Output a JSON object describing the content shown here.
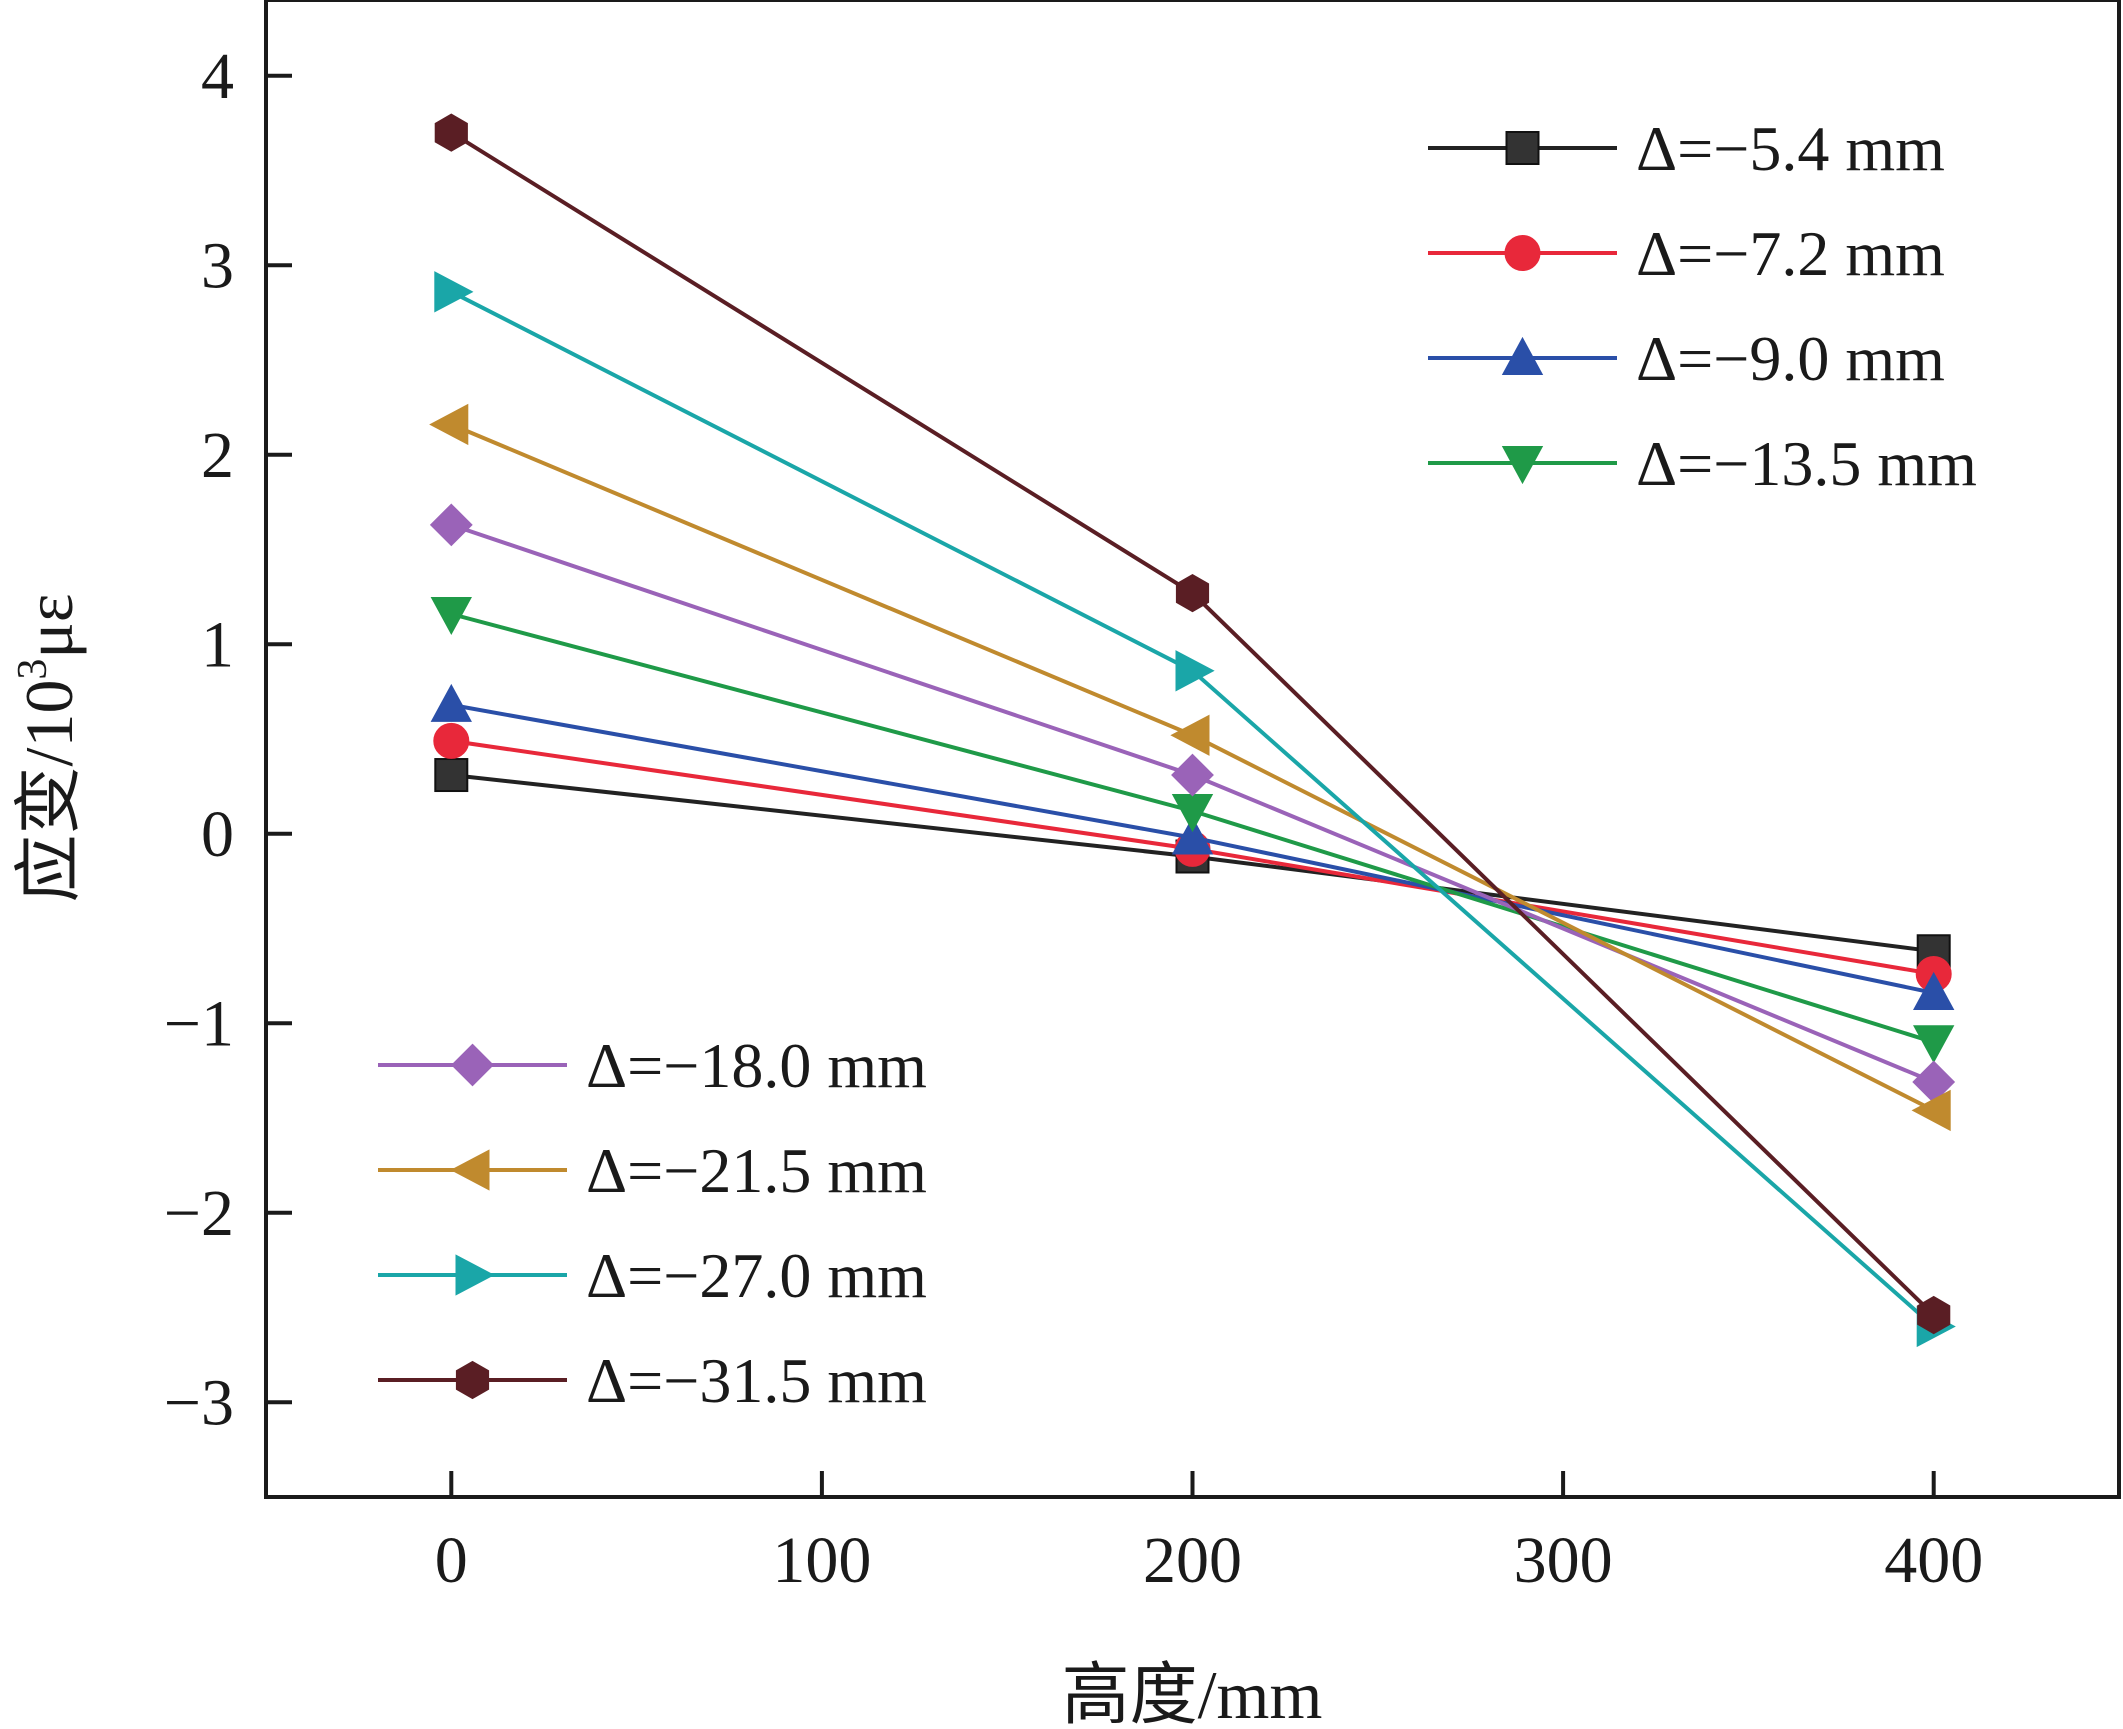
{
  "chart_data": {
    "type": "line",
    "title": "",
    "xlabel": "高度/mm",
    "ylabel_main": "应变/10",
    "ylabel_sup": "3",
    "ylabel_unit": "με",
    "xlim": [
      -50,
      450
    ],
    "ylim": [
      -3.5,
      4.4
    ],
    "xticks": [
      0,
      100,
      200,
      300,
      400
    ],
    "xtick_labels": [
      "0",
      "100",
      "200",
      "300",
      "400"
    ],
    "yticks": [
      -3,
      -2,
      -1,
      0,
      1,
      2,
      3,
      4
    ],
    "ytick_labels": [
      "−3",
      "−2",
      "−1",
      "0",
      "1",
      "2",
      "3",
      "4"
    ],
    "grid": false,
    "x": [
      0,
      200,
      400
    ],
    "series": [
      {
        "name": "Δ=−5.4 mm",
        "values": [
          0.31,
          -0.12,
          -0.62
        ],
        "color": "#222222",
        "marker": "square"
      },
      {
        "name": "Δ=−7.2 mm",
        "values": [
          0.49,
          -0.08,
          -0.74
        ],
        "color": "#e8283a",
        "marker": "circle"
      },
      {
        "name": "Δ=−9.0 mm",
        "values": [
          0.68,
          -0.02,
          -0.84
        ],
        "color": "#2a4fa8",
        "marker": "triangle-up"
      },
      {
        "name": "Δ=−13.5 mm",
        "values": [
          1.16,
          0.12,
          -1.1
        ],
        "color": "#1f9a48",
        "marker": "triangle-down"
      },
      {
        "name": "Δ=−18.0 mm",
        "values": [
          1.63,
          0.31,
          -1.31
        ],
        "color": "#9a63b8",
        "marker": "diamond"
      },
      {
        "name": "Δ=−21.5 mm",
        "values": [
          2.16,
          0.52,
          -1.46
        ],
        "color": "#c08a2e",
        "marker": "triangle-left"
      },
      {
        "name": "Δ=−27.0 mm",
        "values": [
          2.86,
          0.86,
          -2.6
        ],
        "color": "#1aa6a8",
        "marker": "triangle-right"
      },
      {
        "name": "Δ=−31.5 mm",
        "values": [
          3.7,
          1.27,
          -2.54
        ],
        "color": "#5a1e24",
        "marker": "hexagon"
      }
    ],
    "legends": [
      {
        "placement": "top-right",
        "series": [
          0,
          1,
          2,
          3
        ]
      },
      {
        "placement": "bottom-left",
        "series": [
          4,
          5,
          6,
          7
        ]
      }
    ]
  }
}
